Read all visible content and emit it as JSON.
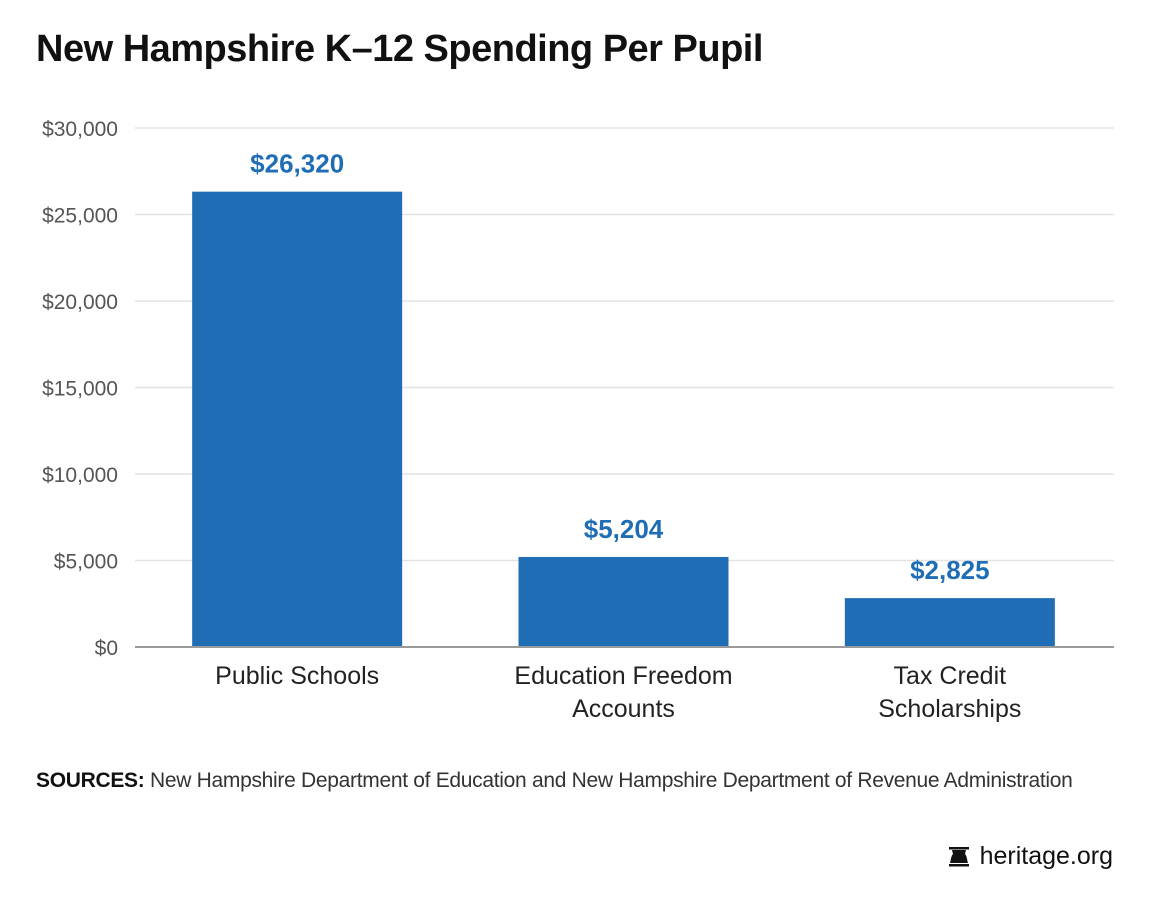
{
  "title": "New Hampshire K–12 Spending Per Pupil",
  "sources": {
    "label": "SOURCES:",
    "text": "New Hampshire Department of Education and New Hampshire Department of Revenue Administration"
  },
  "brand": {
    "icon": "bell-icon",
    "text": "heritage.org"
  },
  "colors": {
    "bar": "#1f6eb5",
    "value_label": "#1f6eb5",
    "grid": "#e3e3e3",
    "axis": "#9a9a9a",
    "tick_label": "#555555",
    "category_label": "#222222"
  },
  "chart_data": {
    "type": "bar",
    "categories": [
      [
        "Public Schools"
      ],
      [
        "Education Freedom",
        "Accounts"
      ],
      [
        "Tax Credit",
        "Scholarships"
      ]
    ],
    "values": [
      26320,
      5204,
      2825
    ],
    "value_labels": [
      "$26,320",
      "$5,204",
      "$2,825"
    ],
    "ylim": [
      0,
      30000
    ],
    "yticks": [
      0,
      5000,
      10000,
      15000,
      20000,
      25000,
      30000
    ],
    "ytick_labels": [
      "$0",
      "$5,000",
      "$10,000",
      "$15,000",
      "$20,000",
      "$25,000",
      "$30,000"
    ],
    "grid": true,
    "legend": "none",
    "xlabel": "",
    "ylabel": ""
  }
}
